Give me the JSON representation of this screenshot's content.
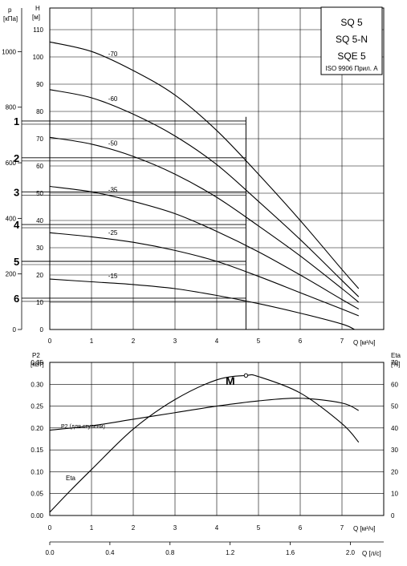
{
  "chart_data": [
    {
      "type": "line",
      "title_box": {
        "models": [
          "SQ 5",
          "SQ 5-N",
          "SQE 5"
        ],
        "note": "ISO 9906 Прил. A"
      },
      "y_left_label": [
        "p",
        "[кПа]"
      ],
      "y_right_label": [
        "H",
        "[м]"
      ],
      "xlabel": "Q [м³/ч]",
      "x_ticks": [
        "0",
        "1",
        "2",
        "3",
        "4",
        "5",
        "6",
        "7"
      ],
      "y_head_ticks": [
        "0",
        "10",
        "20",
        "30",
        "40",
        "50",
        "60",
        "70",
        "80",
        "90",
        "100",
        "110"
      ],
      "y_pressure_ticks": [
        "0",
        "200",
        "400",
        "600",
        "800",
        "1000"
      ],
      "xlim": [
        0,
        7.6
      ],
      "ylim": [
        0,
        114
      ],
      "grid": true,
      "series": [
        {
          "name": "-70",
          "x": [
            0,
            1,
            2,
            3,
            4,
            5,
            6,
            7,
            7.4
          ],
          "y": [
            105.5,
            102,
            95,
            86,
            73,
            57,
            40,
            22,
            15
          ]
        },
        {
          "name": "-60",
          "x": [
            0,
            1,
            2,
            3,
            4,
            5,
            6,
            7,
            7.4
          ],
          "y": [
            88,
            85,
            79,
            71,
            60.5,
            47,
            33,
            18,
            12
          ]
        },
        {
          "name": "-50",
          "x": [
            0,
            1,
            2,
            3,
            4,
            5,
            6,
            7,
            7.4
          ],
          "y": [
            70.5,
            68,
            63.5,
            57,
            48.5,
            38,
            27,
            15,
            10
          ]
        },
        {
          "name": "-35",
          "x": [
            0,
            1,
            2,
            3,
            4,
            5,
            6,
            7,
            7.4
          ],
          "y": [
            52.5,
            50.5,
            47,
            42.5,
            36,
            28.5,
            20,
            11,
            7.5
          ]
        },
        {
          "name": "-25",
          "x": [
            0,
            1,
            2,
            3,
            4,
            5,
            6,
            7,
            7.4
          ],
          "y": [
            35.5,
            34,
            32,
            29,
            25,
            19.5,
            13.5,
            7.5,
            5
          ]
        },
        {
          "name": "-15",
          "x": [
            0,
            1,
            2,
            3,
            4,
            5,
            6,
            7,
            7.3
          ],
          "y": [
            18.5,
            17.5,
            16.5,
            15,
            12.5,
            9.5,
            6,
            2,
            0
          ]
        }
      ],
      "operating_flow": 4.7,
      "reference_lines": [
        {
          "label": "1",
          "y": 76.5
        },
        {
          "label": "2",
          "y": 63
        },
        {
          "label": "3",
          "y": 50.5
        },
        {
          "label": "4",
          "y": 38.5
        },
        {
          "label": "5",
          "y": 25
        },
        {
          "label": "6",
          "y": 11.5
        }
      ]
    },
    {
      "type": "line",
      "y_left_label": [
        "P2",
        "[кВт]"
      ],
      "y_right_label": [
        "Eta",
        "[%]"
      ],
      "xlabel": "Q [м³/ч]",
      "xlabel2": "Q [л/с]",
      "x_ticks": [
        "0",
        "1",
        "2",
        "3",
        "4",
        "5",
        "6",
        "7"
      ],
      "x2_ticks": [
        "0.0",
        "0.4",
        "0.8",
        "1.2",
        "1.6",
        "2.0"
      ],
      "y_power_ticks": [
        "0.00",
        "0.05",
        "0.10",
        "0.15",
        "0.20",
        "0.25",
        "0.30",
        "0.35"
      ],
      "y_eta_ticks": [
        "0",
        "10",
        "20",
        "30",
        "40",
        "50",
        "60",
        "70"
      ],
      "xlim": [
        0,
        7.6
      ],
      "ylim_power": [
        0,
        0.35
      ],
      "ylim_eta": [
        0,
        70
      ],
      "grid": true,
      "series": [
        {
          "name": "P2 (для ступени)",
          "axis": "power",
          "x": [
            0,
            1,
            2,
            3,
            4,
            5,
            6,
            7,
            7.4
          ],
          "y": [
            0.195,
            0.205,
            0.22,
            0.235,
            0.25,
            0.262,
            0.268,
            0.257,
            0.24
          ]
        },
        {
          "name": "Eta",
          "axis": "eta",
          "x": [
            0,
            0.5,
            1,
            2,
            3,
            4,
            4.7,
            5,
            6,
            7,
            7.4
          ],
          "y": [
            1.5,
            11.5,
            21,
            39.5,
            53,
            62,
            64,
            63.5,
            56,
            42,
            33.5
          ]
        }
      ],
      "marker": {
        "label": "M",
        "x": 4.7,
        "eta": 64
      }
    }
  ]
}
